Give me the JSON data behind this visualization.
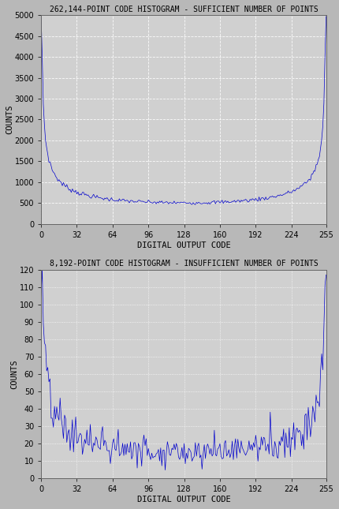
{
  "fig_width": 4.3,
  "fig_height": 6.45,
  "dpi": 100,
  "bg_color": "#b8b8b8",
  "plot_bg_color": "#d0d0d0",
  "line_color": "#0000cc",
  "grid_color1": "#ffffff",
  "grid_color2": "#808080",
  "title1": "262,144-POINT CODE HISTOGRAM - SUFFICIENT NUMBER OF POINTS",
  "title2": "8,192-POINT CODE HISTOGRAM - INSUFFICIENT NUMBER OF POINTS",
  "xlabel": "DIGITAL OUTPUT CODE",
  "ylabel": "COUNTS",
  "xticks": [
    0,
    32,
    64,
    96,
    128,
    160,
    192,
    224,
    255
  ],
  "plot1_ylim": [
    0,
    5000
  ],
  "plot1_yticks": [
    0,
    500,
    1000,
    1500,
    2000,
    2500,
    3000,
    3500,
    4000,
    4500,
    5000
  ],
  "plot2_ylim": [
    0,
    120
  ],
  "plot2_yticks": [
    0,
    10,
    20,
    30,
    40,
    50,
    60,
    70,
    80,
    90,
    100,
    110,
    120
  ],
  "n_codes": 256,
  "total_points1": 262144,
  "total_points2": 8192,
  "title_fontsize": 7.0,
  "label_fontsize": 7.5,
  "tick_fontsize": 7.0
}
